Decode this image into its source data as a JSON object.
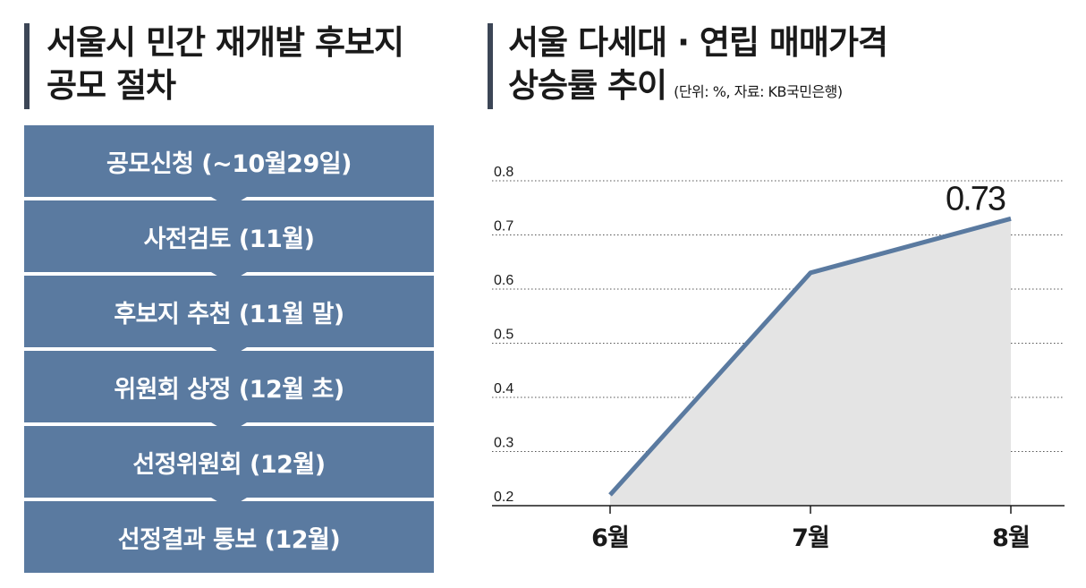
{
  "left_panel": {
    "title_line1": "서울시 민간 재개발 후보지",
    "title_line2": "공모 절차",
    "steps": [
      "공모신청 (~10월29일)",
      "사전검토 (11월)",
      "후보지 추천 (11월 말)",
      "위원회 상정 (12월 초)",
      "선정위원회 (12월)",
      "선정결과 통보 (12월)"
    ]
  },
  "right_panel": {
    "title_line1": "서울 다세대 · 연립 매매가격",
    "title_line2": "상승률 추이",
    "unit_note": "(단위: %, 자료: KB국민은행)"
  },
  "colors": {
    "step_fill": "#5a7aa0",
    "line": "#5a7aa0",
    "area": "#e4e4e4",
    "title_bar": "#3c4656"
  },
  "chart_data": {
    "type": "area",
    "categories": [
      "6월",
      "7월",
      "8월"
    ],
    "values": [
      0.22,
      0.63,
      0.73
    ],
    "data_labels": [
      null,
      null,
      "0.73"
    ],
    "yticks": [
      "0.8",
      "0.7",
      "0.6",
      "0.5",
      "0.4",
      "0.3",
      "0.2"
    ],
    "ylim": [
      0.2,
      0.8
    ],
    "grid": "dotted horizontal",
    "unit": "%"
  }
}
